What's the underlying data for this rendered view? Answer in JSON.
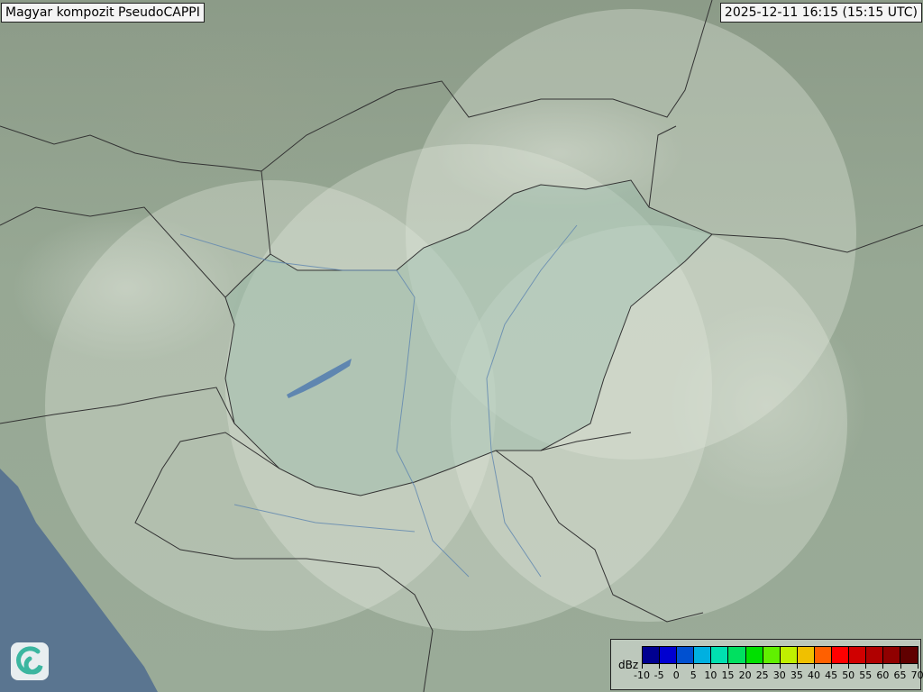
{
  "header": {
    "title": "Magyar kompozit  PseudoCAPPI",
    "timestamp": "2025-12-11 16:15 (15:15 UTC)"
  },
  "legend": {
    "unit": "dBz",
    "ticks": [
      "-10",
      "-5",
      "0",
      "5",
      "10",
      "15",
      "20",
      "25",
      "30",
      "35",
      "40",
      "45",
      "50",
      "55",
      "60",
      "65",
      "70"
    ],
    "colors": [
      "#000090",
      "#0000d0",
      "#0050d0",
      "#00b0e0",
      "#00e0b0",
      "#00e060",
      "#00e000",
      "#60f000",
      "#c0f000",
      "#f0c000",
      "#ff6000",
      "#ff0000",
      "#d00000",
      "#b00000",
      "#900000",
      "#600000"
    ]
  },
  "map": {
    "precipitation": "none",
    "sea_color": "#5a7590",
    "land_color": "#97a894",
    "coverage_tint": "#dfe6dd"
  },
  "logo": {
    "icon": "swirl-logo-icon"
  }
}
